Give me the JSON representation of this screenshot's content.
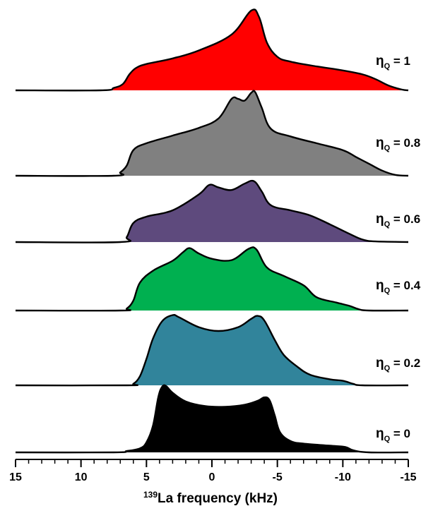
{
  "chart_data": {
    "type": "area",
    "xlabel_sup": "139",
    "xlabel_main": "La frequency (kHz)",
    "xlim": [
      15,
      -15
    ],
    "xticks": [
      15,
      10,
      5,
      0,
      -5,
      -10,
      -15
    ],
    "reversed_x": true,
    "label_prefix": "η",
    "label_sub": "Q",
    "series": [
      {
        "name": "1",
        "eta": 1,
        "color": "#ff0000",
        "shape": [
          [
            8.5,
            0
          ],
          [
            7.5,
            0.03
          ],
          [
            6.8,
            0.08
          ],
          [
            6.3,
            0.2
          ],
          [
            5.8,
            0.28
          ],
          [
            5,
            0.33
          ],
          [
            3,
            0.4
          ],
          [
            1,
            0.5
          ],
          [
            -1.5,
            0.7
          ],
          [
            -3,
            1.0
          ],
          [
            -3.6,
            0.92
          ],
          [
            -4.2,
            0.6
          ],
          [
            -5,
            0.42
          ],
          [
            -6,
            0.36
          ],
          [
            -8,
            0.3
          ],
          [
            -10,
            0.25
          ],
          [
            -11.5,
            0.2
          ],
          [
            -12.5,
            0.14
          ],
          [
            -13.5,
            0.06
          ],
          [
            -14.5,
            0.01
          ],
          [
            -15,
            0
          ]
        ]
      },
      {
        "name": "0.8",
        "eta": 0.8,
        "color": "#808080",
        "shape": [
          [
            7.5,
            0
          ],
          [
            7,
            0.04
          ],
          [
            6.5,
            0.12
          ],
          [
            6,
            0.3
          ],
          [
            5,
            0.38
          ],
          [
            3,
            0.47
          ],
          [
            1,
            0.56
          ],
          [
            -0.5,
            0.67
          ],
          [
            -1.5,
            0.9
          ],
          [
            -2,
            0.9
          ],
          [
            -2.5,
            0.88
          ],
          [
            -3,
            0.97
          ],
          [
            -3.3,
            0.98
          ],
          [
            -3.8,
            0.8
          ],
          [
            -4.5,
            0.55
          ],
          [
            -6,
            0.46
          ],
          [
            -8,
            0.38
          ],
          [
            -10,
            0.3
          ],
          [
            -11,
            0.22
          ],
          [
            -12,
            0.14
          ],
          [
            -13,
            0.06
          ],
          [
            -14,
            0.01
          ],
          [
            -15,
            0
          ]
        ]
      },
      {
        "name": "0.6",
        "eta": 0.6,
        "color": "#5e4a7d",
        "shape": [
          [
            7,
            0
          ],
          [
            6.5,
            0.08
          ],
          [
            6,
            0.3
          ],
          [
            5,
            0.4
          ],
          [
            3,
            0.5
          ],
          [
            1,
            0.75
          ],
          [
            0.2,
            0.9
          ],
          [
            -0.5,
            0.86
          ],
          [
            -1.5,
            0.82
          ],
          [
            -2.5,
            0.92
          ],
          [
            -3.2,
            0.96
          ],
          [
            -3.8,
            0.8
          ],
          [
            -4.5,
            0.58
          ],
          [
            -6,
            0.5
          ],
          [
            -7.5,
            0.42
          ],
          [
            -9,
            0.28
          ],
          [
            -10.5,
            0.13
          ],
          [
            -11.5,
            0.04
          ],
          [
            -12.5,
            0.01
          ],
          [
            -15,
            0
          ]
        ]
      },
      {
        "name": "0.4",
        "eta": 0.4,
        "color": "#00b050",
        "shape": [
          [
            7,
            0
          ],
          [
            6.5,
            0.03
          ],
          [
            6,
            0.15
          ],
          [
            5.5,
            0.42
          ],
          [
            4.5,
            0.6
          ],
          [
            3,
            0.75
          ],
          [
            2.2,
            0.88
          ],
          [
            1.7,
            0.94
          ],
          [
            1,
            0.86
          ],
          [
            0,
            0.78
          ],
          [
            -1.5,
            0.76
          ],
          [
            -2.8,
            0.93
          ],
          [
            -3.4,
            0.92
          ],
          [
            -4.2,
            0.65
          ],
          [
            -5.5,
            0.52
          ],
          [
            -7,
            0.38
          ],
          [
            -8,
            0.2
          ],
          [
            -9.5,
            0.12
          ],
          [
            -10.5,
            0.07
          ],
          [
            -11.2,
            0.02
          ],
          [
            -12,
            0
          ],
          [
            -15,
            0
          ]
        ]
      },
      {
        "name": "0.2",
        "eta": 0.2,
        "color": "#31849b",
        "shape": [
          [
            6.5,
            0
          ],
          [
            6,
            0.02
          ],
          [
            5.5,
            0.12
          ],
          [
            5,
            0.35
          ],
          [
            4.5,
            0.62
          ],
          [
            3.8,
            0.85
          ],
          [
            3,
            0.93
          ],
          [
            2.5,
            0.9
          ],
          [
            1,
            0.77
          ],
          [
            -0.5,
            0.72
          ],
          [
            -2,
            0.77
          ],
          [
            -3,
            0.88
          ],
          [
            -3.5,
            0.92
          ],
          [
            -4,
            0.86
          ],
          [
            -4.8,
            0.6
          ],
          [
            -5.5,
            0.4
          ],
          [
            -6.5,
            0.25
          ],
          [
            -7.5,
            0.14
          ],
          [
            -9,
            0.08
          ],
          [
            -10,
            0.06
          ],
          [
            -10.8,
            0.02
          ],
          [
            -11.5,
            0
          ],
          [
            -15,
            0
          ]
        ]
      },
      {
        "name": "0",
        "eta": 0,
        "color": "#000000",
        "shape": [
          [
            7.5,
            0
          ],
          [
            6.5,
            0.02
          ],
          [
            5.5,
            0.06
          ],
          [
            5,
            0.15
          ],
          [
            4.5,
            0.4
          ],
          [
            4.1,
            0.82
          ],
          [
            3.8,
            0.98
          ],
          [
            3.5,
            0.99
          ],
          [
            3,
            0.89
          ],
          [
            2,
            0.76
          ],
          [
            0.5,
            0.69
          ],
          [
            -1,
            0.68
          ],
          [
            -2.5,
            0.71
          ],
          [
            -3.5,
            0.77
          ],
          [
            -4,
            0.82
          ],
          [
            -4.4,
            0.78
          ],
          [
            -4.8,
            0.55
          ],
          [
            -5.2,
            0.3
          ],
          [
            -6,
            0.17
          ],
          [
            -7,
            0.13
          ],
          [
            -9,
            0.1
          ],
          [
            -10.2,
            0.08
          ],
          [
            -10.8,
            0.03
          ],
          [
            -12,
            0
          ],
          [
            -15,
            0
          ]
        ]
      }
    ]
  }
}
